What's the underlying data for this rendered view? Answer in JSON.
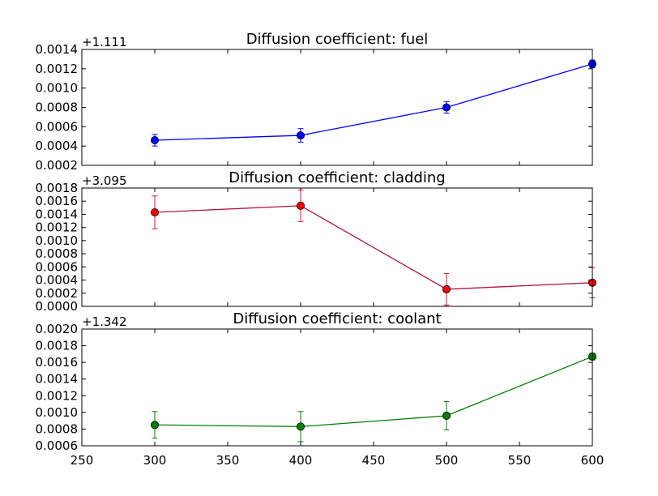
{
  "chart_data": [
    {
      "type": "line",
      "title": "Diffusion coefficient: fuel",
      "offset_label": "+1.111",
      "x": [
        300,
        400,
        500,
        600
      ],
      "xlim": [
        250,
        600
      ],
      "ylim": [
        0.0002,
        0.0014
      ],
      "yticks": [
        "0.0002",
        "0.0004",
        "0.0006",
        "0.0008",
        "0.0010",
        "0.0012",
        "0.0014"
      ],
      "series": [
        {
          "values": [
            0.00046,
            0.00051,
            0.0008,
            0.00125
          ],
          "errors": [
            6e-05,
            7e-05,
            6e-05,
            4e-05
          ],
          "line_color": "#0000ff",
          "marker_color": "#0000ff",
          "error_color": "#0000ff"
        }
      ],
      "grid": false
    },
    {
      "type": "line",
      "title": "Diffusion coefficient: cladding",
      "offset_label": "+3.095",
      "x": [
        300,
        400,
        500,
        600
      ],
      "xlim": [
        250,
        600
      ],
      "ylim": [
        0.0,
        0.0018
      ],
      "yticks": [
        "0.0000",
        "0.0002",
        "0.0004",
        "0.0006",
        "0.0008",
        "0.0010",
        "0.0012",
        "0.0014",
        "0.0016",
        "0.0018"
      ],
      "series": [
        {
          "values": [
            0.00143,
            0.00153,
            0.00026,
            0.00036
          ],
          "errors": [
            0.00025,
            0.00024,
            0.00024,
            0.00023
          ],
          "line_color": "#b5153e",
          "marker_color": "#ff0000",
          "error_color": "#dc143c"
        }
      ],
      "grid": false
    },
    {
      "type": "line",
      "title": "Diffusion coefficient: coolant",
      "offset_label": "+1.342",
      "x": [
        300,
        400,
        500,
        600
      ],
      "xlim": [
        250,
        600
      ],
      "ylim": [
        0.0006,
        0.002
      ],
      "yticks": [
        "0.0006",
        "0.0008",
        "0.0010",
        "0.0012",
        "0.0014",
        "0.0016",
        "0.0018",
        "0.0020"
      ],
      "xticks": [
        "250",
        "300",
        "350",
        "400",
        "450",
        "500",
        "550",
        "600"
      ],
      "series": [
        {
          "values": [
            0.00085,
            0.00083,
            0.00096,
            0.00167
          ],
          "errors": [
            0.00016,
            0.00018,
            0.00017,
            4e-05
          ],
          "line_color": "#008000",
          "marker_color": "#008000",
          "error_color": "#008000"
        }
      ],
      "grid": false
    }
  ]
}
